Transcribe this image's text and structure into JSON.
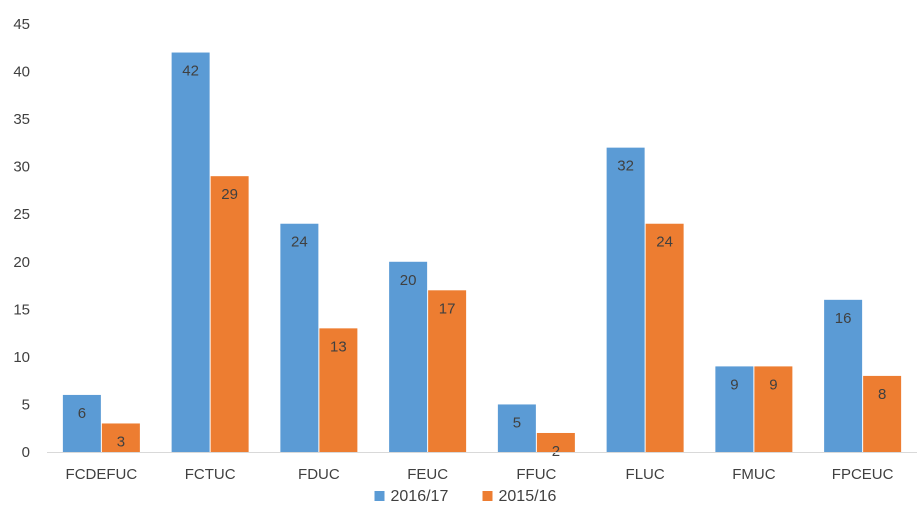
{
  "chart_data": {
    "type": "bar",
    "title": "",
    "xlabel": "",
    "ylabel": "",
    "ylim": [
      0,
      45
    ],
    "yticks": [
      0,
      5,
      10,
      15,
      20,
      25,
      30,
      35,
      40,
      45
    ],
    "grid": false,
    "legend_position": "bottom",
    "categories": [
      "FCDEFUC",
      "FCTUC",
      "FDUC",
      "FEUC",
      "FFUC",
      "FLUC",
      "FMUC",
      "FPCEUC"
    ],
    "series": [
      {
        "name": "2016/17",
        "color": "#5b9bd5",
        "values": [
          6,
          42,
          24,
          20,
          5,
          32,
          9,
          16
        ]
      },
      {
        "name": "2015/16",
        "color": "#ed7d31",
        "values": [
          3,
          29,
          13,
          17,
          2,
          24,
          9,
          8
        ]
      }
    ]
  }
}
